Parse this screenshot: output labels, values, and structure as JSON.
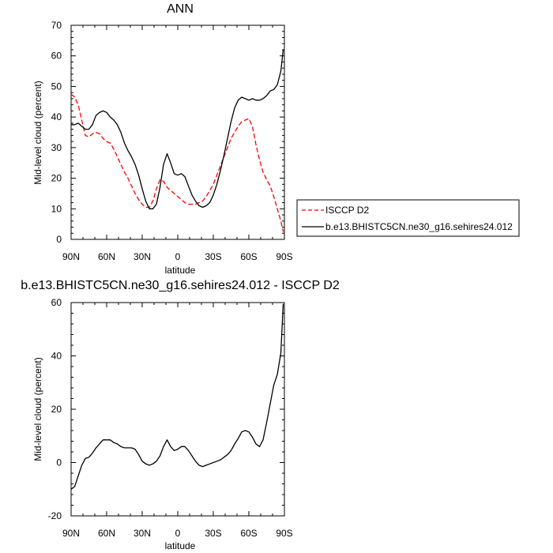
{
  "chart_data": [
    {
      "type": "line",
      "title": "ANN",
      "xlabel": "latitude",
      "ylabel": "Mid-level cloud (percent)",
      "xlim": [
        90,
        -90
      ],
      "ylim": [
        0,
        70
      ],
      "x_ticks": [
        {
          "value": 90,
          "label": "90N"
        },
        {
          "value": 60,
          "label": "60N"
        },
        {
          "value": 30,
          "label": "30N"
        },
        {
          "value": 0,
          "label": "0"
        },
        {
          "value": -30,
          "label": "30S"
        },
        {
          "value": -60,
          "label": "60S"
        },
        {
          "value": -90,
          "label": "90S"
        }
      ],
      "y_ticks": [
        0,
        10,
        20,
        30,
        40,
        50,
        60,
        70
      ],
      "legend_position": "right",
      "series": [
        {
          "name": "ISCCP D2",
          "color": "#ff0000",
          "dash": "dashed",
          "x": [
            90,
            87,
            84,
            81,
            78,
            75,
            72,
            69,
            66,
            63,
            60,
            57,
            54,
            51,
            48,
            45,
            42,
            39,
            36,
            33,
            30,
            27,
            24,
            21,
            18,
            15,
            12,
            9,
            6,
            3,
            0,
            -3,
            -6,
            -9,
            -12,
            -15,
            -18,
            -21,
            -24,
            -27,
            -30,
            -33,
            -36,
            -39,
            -42,
            -45,
            -48,
            -51,
            -54,
            -57,
            -60,
            -63,
            -66,
            -69,
            -72,
            -75,
            -78,
            -81,
            -84,
            -87,
            -89
          ],
          "y": [
            47.5,
            46.5,
            44,
            39,
            34,
            33.5,
            34.5,
            35,
            34.5,
            33,
            32,
            31.5,
            29.5,
            27,
            24.5,
            22,
            20,
            17.5,
            15,
            13,
            11.5,
            10.5,
            10.5,
            12.5,
            16.5,
            19.5,
            19,
            17,
            16,
            15,
            14,
            13,
            12,
            11.5,
            11.5,
            11.5,
            12,
            12.5,
            14,
            16,
            18,
            21,
            24,
            27,
            30,
            33,
            35,
            37,
            38.5,
            39,
            39.5,
            37,
            31,
            26,
            22,
            19.5,
            17.5,
            14,
            10,
            6,
            2.5
          ]
        },
        {
          "name": "b.e13.BHISTC5CN.ne30_g16.sehires24.012",
          "color": "#000000",
          "dash": "solid",
          "x": [
            90,
            87,
            84,
            81,
            78,
            75,
            72,
            69,
            66,
            63,
            60,
            57,
            54,
            51,
            48,
            45,
            42,
            39,
            36,
            33,
            30,
            27,
            24,
            21,
            18,
            15,
            12,
            9,
            6,
            3,
            0,
            -3,
            -6,
            -9,
            -12,
            -15,
            -18,
            -21,
            -24,
            -27,
            -30,
            -33,
            -36,
            -39,
            -42,
            -45,
            -48,
            -51,
            -54,
            -57,
            -60,
            -63,
            -66,
            -69,
            -72,
            -75,
            -78,
            -81,
            -84,
            -87,
            -89
          ],
          "y": [
            37.5,
            37.5,
            38,
            37,
            36,
            36,
            37.5,
            40.5,
            41.5,
            42,
            41.5,
            40,
            39,
            37.5,
            35,
            31.5,
            29,
            27,
            24.5,
            21,
            16.5,
            12.5,
            10,
            10,
            11.5,
            17,
            24.5,
            28,
            25,
            21.5,
            21,
            21.5,
            20.5,
            17.5,
            14.5,
            12.5,
            11,
            10.5,
            11,
            12,
            14.5,
            18,
            22.5,
            27.5,
            33,
            38.5,
            43,
            45.5,
            46.5,
            46,
            45.5,
            46,
            45.5,
            45.5,
            46,
            47,
            48.5,
            49,
            50.5,
            55,
            62
          ]
        }
      ]
    },
    {
      "type": "line",
      "title": "b.e13.BHISTC5CN.ne30_g16.sehires24.012 - ISCCP D2",
      "xlabel": "latitude",
      "ylabel": "Mid-level cloud (percent)",
      "xlim": [
        90,
        -90
      ],
      "ylim": [
        -20,
        60
      ],
      "x_ticks": [
        {
          "value": 90,
          "label": "90N"
        },
        {
          "value": 60,
          "label": "60N"
        },
        {
          "value": 30,
          "label": "30N"
        },
        {
          "value": 0,
          "label": "0"
        },
        {
          "value": -30,
          "label": "30S"
        },
        {
          "value": -60,
          "label": "60S"
        },
        {
          "value": -90,
          "label": "90S"
        }
      ],
      "y_ticks": [
        -20,
        0,
        20,
        40,
        60
      ],
      "series": [
        {
          "color": "#000000",
          "dash": "solid",
          "x": [
            90,
            87,
            84,
            81,
            78,
            75,
            72,
            69,
            66,
            63,
            60,
            57,
            54,
            51,
            48,
            45,
            42,
            39,
            36,
            33,
            30,
            27,
            24,
            21,
            18,
            15,
            12,
            9,
            6,
            3,
            0,
            -3,
            -6,
            -9,
            -12,
            -15,
            -18,
            -21,
            -24,
            -27,
            -30,
            -33,
            -36,
            -39,
            -42,
            -45,
            -48,
            -51,
            -54,
            -57,
            -60,
            -63,
            -66,
            -69,
            -72,
            -75,
            -78,
            -81,
            -84,
            -87,
            -89
          ],
          "y": [
            -10,
            -9,
            -5,
            -1,
            1.5,
            2,
            3.5,
            5.5,
            7,
            8.5,
            8.5,
            8.5,
            7.5,
            7,
            6,
            5.5,
            5.5,
            5.5,
            5,
            3,
            0.5,
            -0.5,
            -1,
            -0.5,
            0.5,
            2.5,
            6,
            8.5,
            6,
            4.5,
            5,
            6,
            6,
            4.5,
            2.5,
            0.5,
            -1,
            -1.5,
            -1,
            -0.5,
            0,
            0.5,
            1,
            2,
            3,
            4.5,
            7,
            9,
            11.5,
            12,
            11.5,
            9.5,
            7,
            6,
            8.5,
            15,
            22,
            29,
            33,
            41,
            59.5
          ]
        }
      ]
    }
  ]
}
